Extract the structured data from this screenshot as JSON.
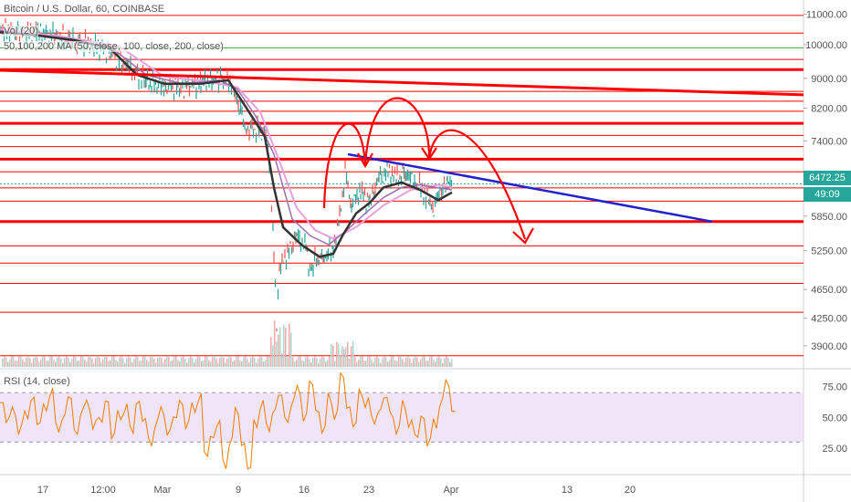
{
  "chart_title": "Bitcoin / U.S. Dollar, 60, COINBASE",
  "legend_vol": "Vol (20)",
  "legend_ma": "50,100,200 MA (50, close, 100, close, 200, close)",
  "legend_rsi": "RSI (14, close)",
  "current_price_tag": "6472.25",
  "countdown_tag": "49:09",
  "colors": {
    "resistance": "#ff0000",
    "green_level": "#4caf50",
    "trendline": "#2222cc",
    "arrows": "#ff0000",
    "rsi_line": "#f57c00",
    "rsi_band": "#ead9f7",
    "price_tag_bg": "#26a69a",
    "countdown_bg": "#26a69a"
  },
  "chart_data": [
    {
      "type": "candlestick",
      "title": "Bitcoin / U.S. Dollar, 60, COINBASE",
      "y_scale": "log",
      "ylim": [
        3650,
        11500
      ],
      "y_ticks": [
        11000,
        10000,
        9000,
        8200,
        7400,
        6472.25,
        5850,
        5250,
        4650,
        4250,
        3900
      ],
      "x_tick_labels": [
        "17",
        "12:00",
        "Mar",
        "9",
        "16",
        "23",
        "Apr",
        "13",
        "20"
      ],
      "horizontal_levels": [
        {
          "price": 10960,
          "weight": "thin"
        },
        {
          "price": 10370,
          "weight": "thin"
        },
        {
          "price": 9900,
          "weight": "thin",
          "color": "green"
        },
        {
          "price": 9550,
          "weight": "thin"
        },
        {
          "price": 9250,
          "weight": "thick"
        },
        {
          "price": 8640,
          "weight": "thin"
        },
        {
          "price": 8380,
          "weight": "thin"
        },
        {
          "price": 8120,
          "weight": "thin"
        },
        {
          "price": 7820,
          "weight": "thick"
        },
        {
          "price": 7530,
          "weight": "thin"
        },
        {
          "price": 7270,
          "weight": "thin"
        },
        {
          "price": 6990,
          "weight": "thick"
        },
        {
          "price": 6720,
          "weight": "thin"
        },
        {
          "price": 6390,
          "weight": "thin"
        },
        {
          "price": 6130,
          "weight": "thin"
        },
        {
          "price": 5750,
          "weight": "thick"
        },
        {
          "price": 5330,
          "weight": "thin"
        },
        {
          "price": 5050,
          "weight": "thin"
        },
        {
          "price": 4740,
          "weight": "thin"
        },
        {
          "price": 4330,
          "weight": "thin"
        },
        {
          "price": 3780,
          "weight": "thin"
        }
      ],
      "price_path": [
        [
          0,
          10500
        ],
        [
          20,
          10350
        ],
        [
          40,
          10400
        ],
        [
          60,
          10250
        ],
        [
          80,
          10100
        ],
        [
          100,
          10000
        ],
        [
          120,
          9800
        ],
        [
          140,
          9300
        ],
        [
          160,
          8900
        ],
        [
          180,
          8800
        ],
        [
          200,
          8750
        ],
        [
          220,
          8900
        ],
        [
          240,
          9000
        ],
        [
          255,
          8850
        ],
        [
          262,
          8200
        ],
        [
          270,
          7700
        ],
        [
          285,
          7650
        ],
        [
          292,
          7500
        ],
        [
          296,
          6700
        ],
        [
          300,
          5300
        ],
        [
          303,
          4100
        ],
        [
          306,
          5000
        ],
        [
          315,
          5200
        ],
        [
          325,
          5500
        ],
        [
          335,
          5300
        ],
        [
          340,
          4900
        ],
        [
          345,
          5100
        ],
        [
          355,
          5150
        ],
        [
          365,
          5300
        ],
        [
          372,
          5800
        ],
        [
          378,
          6700
        ],
        [
          385,
          6100
        ],
        [
          395,
          6300
        ],
        [
          405,
          6100
        ],
        [
          415,
          6600
        ],
        [
          425,
          6700
        ],
        [
          435,
          6600
        ],
        [
          445,
          6700
        ],
        [
          455,
          6500
        ],
        [
          465,
          6300
        ],
        [
          475,
          6000
        ],
        [
          482,
          6300
        ],
        [
          490,
          6500
        ],
        [
          495,
          6472
        ]
      ],
      "ma_50": [
        [
          0,
          10400
        ],
        [
          40,
          10300
        ],
        [
          80,
          10150
        ],
        [
          120,
          9900
        ],
        [
          150,
          9100
        ],
        [
          180,
          8850
        ],
        [
          220,
          8850
        ],
        [
          250,
          8950
        ],
        [
          270,
          8200
        ],
        [
          290,
          7500
        ],
        [
          300,
          6400
        ],
        [
          310,
          5650
        ],
        [
          330,
          5350
        ],
        [
          350,
          5150
        ],
        [
          365,
          5200
        ],
        [
          375,
          5500
        ],
        [
          390,
          5900
        ],
        [
          405,
          6100
        ],
        [
          420,
          6400
        ],
        [
          440,
          6500
        ],
        [
          460,
          6350
        ],
        [
          480,
          6150
        ],
        [
          495,
          6300
        ]
      ],
      "ma_100": [
        [
          0,
          10450
        ],
        [
          60,
          10200
        ],
        [
          120,
          9950
        ],
        [
          160,
          9100
        ],
        [
          200,
          8850
        ],
        [
          240,
          8950
        ],
        [
          260,
          8700
        ],
        [
          280,
          8000
        ],
        [
          300,
          7100
        ],
        [
          320,
          5800
        ],
        [
          340,
          5500
        ],
        [
          360,
          5350
        ],
        [
          380,
          5600
        ],
        [
          400,
          5900
        ],
        [
          420,
          6200
        ],
        [
          440,
          6400
        ],
        [
          460,
          6450
        ],
        [
          495,
          6350
        ]
      ],
      "ma_200": [
        [
          0,
          10500
        ],
        [
          70,
          10250
        ],
        [
          130,
          9950
        ],
        [
          180,
          9050
        ],
        [
          230,
          8900
        ],
        [
          260,
          8750
        ],
        [
          285,
          8100
        ],
        [
          305,
          7000
        ],
        [
          325,
          6000
        ],
        [
          345,
          5600
        ],
        [
          365,
          5450
        ],
        [
          390,
          5650
        ],
        [
          420,
          6050
        ],
        [
          450,
          6350
        ],
        [
          480,
          6450
        ],
        [
          495,
          6400
        ]
      ],
      "annotations": [
        {
          "type": "trendline_down",
          "from": [
            381,
            7100
          ],
          "to": [
            780,
            5750
          ]
        },
        {
          "type": "trendline_down",
          "from": [
            0,
            9230
          ],
          "to": [
            880,
            8550
          ]
        },
        {
          "type": "arrow_path",
          "description": "zig-zag head-and-shoulders projection ending in downward arrow"
        }
      ]
    },
    {
      "type": "line",
      "title": "RSI (14, close)",
      "ylim": [
        5,
        88
      ],
      "y_ticks": [
        75.0,
        50.0,
        25.0
      ],
      "band": [
        30,
        70
      ],
      "series": [
        {
          "values": [
            62,
            48,
            55,
            40,
            52,
            65,
            45,
            58,
            70,
            42,
            50,
            66,
            38,
            55,
            60,
            44,
            48,
            63,
            35,
            52,
            57,
            40,
            62,
            48,
            30,
            45,
            55,
            38,
            50,
            62,
            44,
            58,
            66,
            20,
            34,
            45,
            12,
            30,
            55,
            28,
            8,
            45,
            60,
            42,
            55,
            68,
            48,
            62,
            72,
            50,
            78,
            55,
            40,
            66,
            52,
            85,
            58,
            44,
            70,
            62,
            48,
            55,
            66,
            52,
            40,
            60,
            45,
            35,
            50,
            30,
            45,
            62,
            78,
            55
          ]
        }
      ]
    }
  ]
}
